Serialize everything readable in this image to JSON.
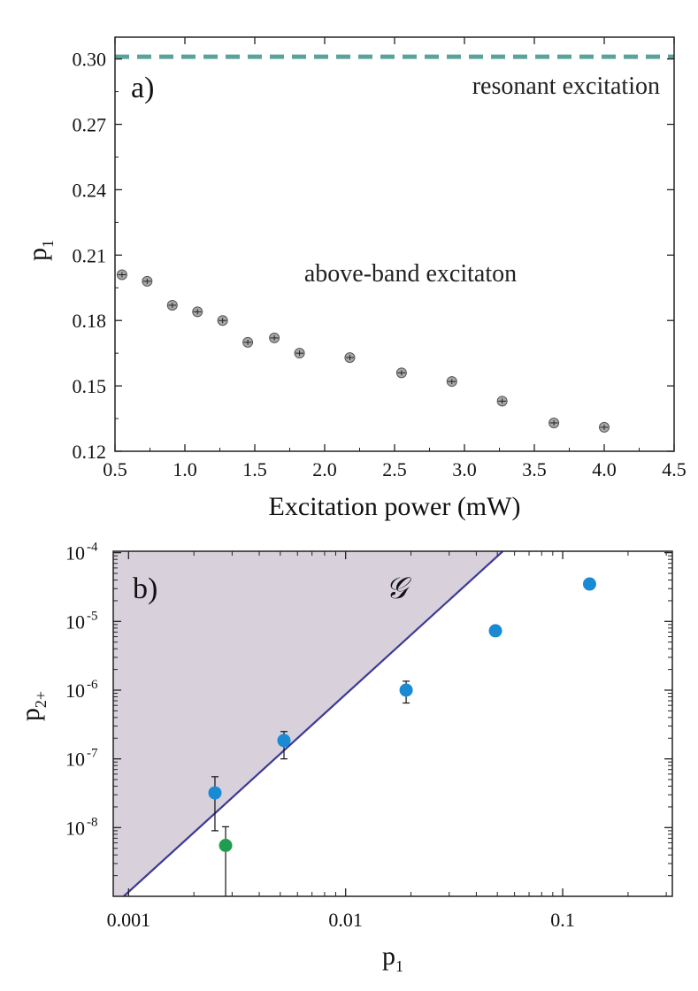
{
  "chart_data": [
    {
      "panel": "a)",
      "type": "scatter",
      "xlabel": "Excitation power (mW)",
      "ylabel": "p",
      "ylabel_sub": "1",
      "xlim": [
        0.5,
        4.5
      ],
      "ylim": [
        0.12,
        0.31
      ],
      "xticks": [
        "0.5",
        "1.0",
        "1.5",
        "2.0",
        "2.5",
        "3.0",
        "3.5",
        "4.0",
        "4.5"
      ],
      "yticks": [
        "0.12",
        "0.15",
        "0.18",
        "0.21",
        "0.24",
        "0.27",
        "0.30"
      ],
      "annotations": [
        "resonant excitation",
        "above-band excitaton"
      ],
      "reference_line": {
        "y": 0.301,
        "style": "dashed",
        "color": "#5aa39b"
      },
      "marker_color": "#a8a8a8",
      "series": [
        {
          "x": [
            0.55,
            0.73,
            0.91,
            1.09,
            1.27,
            1.45,
            1.64,
            1.82,
            2.18,
            2.55,
            2.91,
            3.27,
            3.64,
            4.0
          ],
          "y": [
            0.201,
            0.198,
            0.187,
            0.184,
            0.18,
            0.17,
            0.172,
            0.165,
            0.163,
            0.156,
            0.152,
            0.143,
            0.133,
            0.131
          ]
        }
      ]
    },
    {
      "panel": "b)",
      "type": "scatter",
      "xlabel": "p",
      "xlabel_sub": "1",
      "ylabel": "p",
      "ylabel_sub": "2+",
      "xscale": "log",
      "yscale": "log",
      "xlim": [
        0.00085,
        0.32
      ],
      "ylim": [
        1e-09,
        0.000105
      ],
      "xticks": [
        "0.001",
        "0.01",
        "0.1"
      ],
      "yticks": [
        {
          "base": "10",
          "exp": "-8"
        },
        {
          "base": "10",
          "exp": "-7"
        },
        {
          "base": "10",
          "exp": "-6"
        },
        {
          "base": "10",
          "exp": "-5"
        },
        {
          "base": "10",
          "exp": "-4"
        }
      ],
      "region_label": "𝒢",
      "region_color": "#d8d1dc",
      "boundary_color": "#3b3b96",
      "boundary_line": {
        "x": [
          0.00095,
          0.053
        ],
        "y": [
          1e-09,
          0.000105
        ]
      },
      "series": [
        {
          "color": "#1a8ad4",
          "points": [
            {
              "x": 0.0025,
              "y": 3.2e-08,
              "err_lo": 9e-09,
              "err_hi": 5.5e-08
            },
            {
              "x": 0.0052,
              "y": 1.85e-07,
              "err_lo": 1e-07,
              "err_hi": 2.5e-07
            },
            {
              "x": 0.019,
              "y": 1e-06,
              "err_lo": 6.5e-07,
              "err_hi": 1.35e-06
            },
            {
              "x": 0.049,
              "y": 7.3e-06,
              "err_lo": 6.5e-06,
              "err_hi": 8.1e-06
            },
            {
              "x": 0.133,
              "y": 3.5e-05,
              "err_lo": 3.1e-05,
              "err_hi": 3.9e-05
            }
          ]
        },
        {
          "color": "#1e9e4d",
          "points": [
            {
              "x": 0.0028,
              "y": 5.5e-09,
              "err_lo": 1e-09,
              "err_hi": 1.03e-08
            }
          ]
        }
      ]
    }
  ]
}
